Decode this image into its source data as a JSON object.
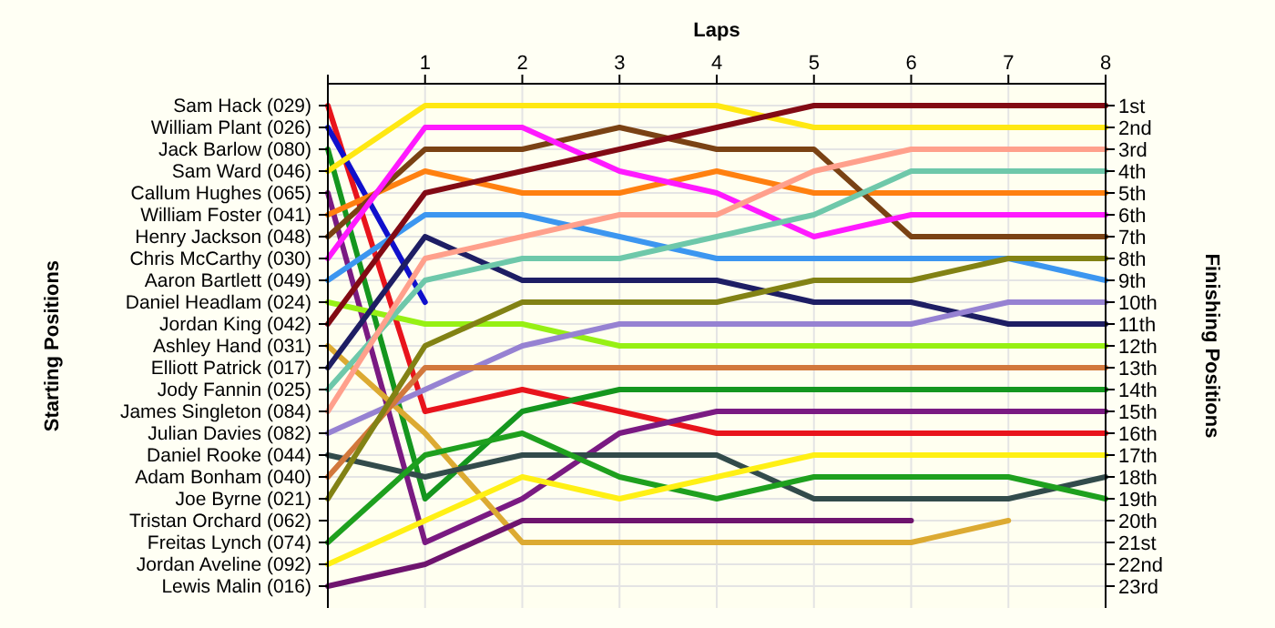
{
  "chart_data": {
    "type": "line",
    "xlabel": "Laps",
    "y2label": "Finishing Positions",
    "grid": true,
    "x": [
      0,
      1,
      2,
      3,
      4,
      5,
      6,
      7,
      8
    ],
    "annotations": [
      "Starting Positions",
      "Tristan Orchard (062)"
    ],
    "xlim": [
      0,
      8
    ],
    "xticks": [
      {
        "value": 0,
        "label": null
      },
      1,
      2,
      3,
      4,
      5,
      6,
      7,
      8
    ],
    "y2lim": [
      24,
      0
    ],
    "y2ticks": [
      {
        "value": 1,
        "label": "1st"
      },
      {
        "value": 2,
        "label": "2nd"
      },
      {
        "value": 3,
        "label": "3rd"
      },
      {
        "value": 4,
        "label": "4th"
      },
      {
        "value": 5,
        "label": "5th"
      },
      {
        "value": 6,
        "label": "6th"
      },
      {
        "value": 7,
        "label": "7th"
      },
      {
        "value": 8,
        "label": "8th"
      },
      {
        "value": 9,
        "label": "9th"
      },
      {
        "value": 10,
        "label": "10th"
      },
      {
        "value": 11,
        "label": "11th"
      },
      {
        "value": 12,
        "label": "12th"
      },
      {
        "value": 13,
        "label": "13th"
      },
      {
        "value": 14,
        "label": "14th"
      },
      {
        "value": 15,
        "label": "15th"
      },
      {
        "value": 16,
        "label": "16th"
      },
      {
        "value": 17,
        "label": "17th"
      },
      {
        "value": 18,
        "label": "18th"
      },
      {
        "value": 19,
        "label": "19th"
      },
      {
        "value": 20,
        "label": "20th"
      },
      {
        "value": 21,
        "label": "21st"
      },
      {
        "value": 22,
        "label": "22nd"
      },
      {
        "value": 23,
        "label": "23rd"
      }
    ],
    "series": [
      {
        "name": "Sam Hack (029)",
        "axis": "y2",
        "color": "#e8141c",
        "values": [
          1,
          15,
          14,
          15,
          16,
          16,
          16,
          16,
          16
        ]
      },
      {
        "name": "William Plant (026)",
        "axis": "y2",
        "color": "#1010cc",
        "values": [
          2,
          10,
          null,
          null,
          null,
          null,
          null,
          null,
          null
        ]
      },
      {
        "name": "Jack Barlow (080)",
        "axis": "y2",
        "color": "#14961e",
        "values": [
          3,
          19,
          15,
          14,
          14,
          14,
          14,
          14,
          14
        ]
      },
      {
        "name": "Sam Ward (046)",
        "axis": "y2",
        "color": "#ffe812",
        "values": [
          4,
          1,
          1,
          1,
          1,
          2,
          2,
          2,
          2
        ]
      },
      {
        "name": "Callum Hughes (065)",
        "axis": "y2",
        "color": "#7a1a82",
        "values": [
          5,
          21,
          19,
          16,
          15,
          15,
          15,
          15,
          15
        ]
      },
      {
        "name": "William Foster (041)",
        "axis": "y2",
        "color": "#ff8010",
        "values": [
          6,
          4,
          5,
          5,
          4,
          5,
          5,
          5,
          5
        ]
      },
      {
        "name": "Henry Jackson (048)",
        "axis": "y2",
        "color": "#7a4214",
        "values": [
          7,
          3,
          3,
          2,
          3,
          3,
          7,
          7,
          7
        ]
      },
      {
        "name": "Chris McCarthy (030)",
        "axis": "y2",
        "color": "#ff1aff",
        "values": [
          8,
          2,
          2,
          4,
          5,
          7,
          6,
          6,
          6
        ]
      },
      {
        "name": "Aaron Bartlett (049)",
        "axis": "y2",
        "color": "#3c96f0",
        "values": [
          9,
          6,
          6,
          7,
          8,
          8,
          8,
          8,
          9
        ]
      },
      {
        "name": "Daniel Headlam (024)",
        "axis": "y2",
        "color": "#96f014",
        "values": [
          10,
          11,
          11,
          12,
          12,
          12,
          12,
          12,
          12
        ]
      },
      {
        "name": "Jordan King (042)",
        "axis": "y2",
        "color": "#820a14",
        "values": [
          11,
          5,
          4,
          3,
          2,
          1,
          1,
          1,
          1
        ]
      },
      {
        "name": "Ashley Hand (031)",
        "axis": "y2",
        "color": "#dcaa32",
        "values": [
          12,
          16,
          21,
          21,
          21,
          21,
          21,
          20,
          null
        ]
      },
      {
        "name": "Elliott Patrick (017)",
        "axis": "y2",
        "color": "#1e1e64",
        "values": [
          13,
          7,
          9,
          9,
          9,
          10,
          10,
          11,
          11
        ]
      },
      {
        "name": "Jody Fannin (025)",
        "axis": "y2",
        "color": "#6ec8aa",
        "values": [
          14,
          9,
          8,
          8,
          7,
          6,
          4,
          4,
          4
        ]
      },
      {
        "name": "James Singleton (084)",
        "axis": "y2",
        "color": "#ffa08c",
        "values": [
          15,
          8,
          7,
          6,
          6,
          4,
          3,
          3,
          3
        ]
      },
      {
        "name": "Julian Davies (082)",
        "axis": "y2",
        "color": "#9682d2",
        "values": [
          16,
          14,
          12,
          11,
          11,
          11,
          11,
          10,
          10
        ]
      },
      {
        "name": "Daniel Rooke (044)",
        "axis": "y2",
        "color": "#324b4b",
        "values": [
          17,
          18,
          17,
          17,
          17,
          19,
          19,
          19,
          18
        ]
      },
      {
        "name": "Adam Bonham (040)",
        "axis": "y2",
        "color": "#d2783c",
        "values": [
          18,
          13,
          13,
          13,
          13,
          13,
          13,
          13,
          13
        ]
      },
      {
        "name": "Joe Byrne (021)",
        "axis": "y2",
        "color": "#828214",
        "values": [
          19,
          12,
          10,
          10,
          10,
          9,
          9,
          8,
          8
        ]
      },
      {
        "name": "Freitas Lynch (074)",
        "axis": "y2",
        "color": "#1ea01e",
        "values": [
          21,
          17,
          16,
          18,
          19,
          18,
          18,
          18,
          19
        ]
      },
      {
        "name": "Jordan Aveline (092)",
        "axis": "y2",
        "color": "#fff014",
        "values": [
          22,
          20,
          18,
          19,
          18,
          17,
          17,
          17,
          17
        ]
      },
      {
        "name": "Lewis Malin (016)",
        "axis": "y2",
        "color": "#6e146e",
        "values": [
          23,
          22,
          20,
          20,
          20,
          20,
          20,
          null,
          null
        ]
      }
    ]
  }
}
